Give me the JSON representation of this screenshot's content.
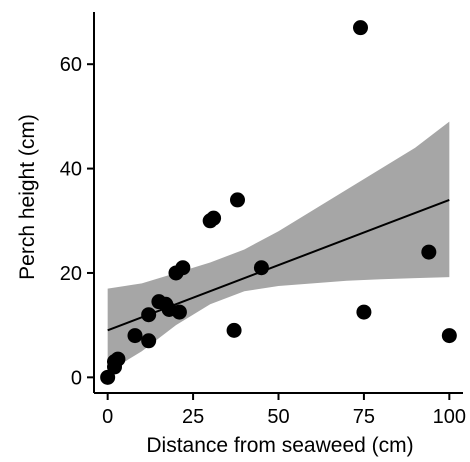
{
  "chart_data": {
    "type": "scatter",
    "xlabel": "Distance from seaweed (cm)",
    "ylabel": "Perch height (cm)",
    "xlim": [
      -4,
      104
    ],
    "ylim": [
      -3,
      70
    ],
    "xticks": [
      0,
      25,
      50,
      75,
      100
    ],
    "yticks": [
      0,
      20,
      40,
      60
    ],
    "grid": false,
    "colors": {
      "points": "#000000",
      "band": "#a6a6a6",
      "line": "#000000"
    },
    "points": [
      {
        "x": 0,
        "y": 0
      },
      {
        "x": 2,
        "y": 2
      },
      {
        "x": 2,
        "y": 3
      },
      {
        "x": 3,
        "y": 3.5
      },
      {
        "x": 8,
        "y": 8
      },
      {
        "x": 12,
        "y": 12
      },
      {
        "x": 12,
        "y": 7
      },
      {
        "x": 15,
        "y": 14.5
      },
      {
        "x": 17,
        "y": 14
      },
      {
        "x": 18,
        "y": 13
      },
      {
        "x": 20,
        "y": 20
      },
      {
        "x": 21,
        "y": 12.5
      },
      {
        "x": 22,
        "y": 21
      },
      {
        "x": 30,
        "y": 30
      },
      {
        "x": 31,
        "y": 30.5
      },
      {
        "x": 37,
        "y": 9
      },
      {
        "x": 38,
        "y": 34
      },
      {
        "x": 45,
        "y": 21
      },
      {
        "x": 74,
        "y": 67
      },
      {
        "x": 75,
        "y": 12.5
      },
      {
        "x": 94,
        "y": 24
      },
      {
        "x": 100,
        "y": 8
      }
    ],
    "fit_line": {
      "x": [
        0,
        100
      ],
      "y": [
        9,
        34
      ]
    },
    "confidence_band": {
      "x": [
        0,
        10,
        20,
        30,
        40,
        50,
        60,
        70,
        80,
        90,
        100
      ],
      "upper": [
        17,
        18,
        20,
        22,
        24.5,
        28,
        32,
        36,
        40,
        44,
        49
      ],
      "lower": [
        1,
        5,
        10,
        14,
        16.5,
        17.5,
        18,
        18.5,
        18.8,
        19,
        19.2
      ]
    }
  }
}
